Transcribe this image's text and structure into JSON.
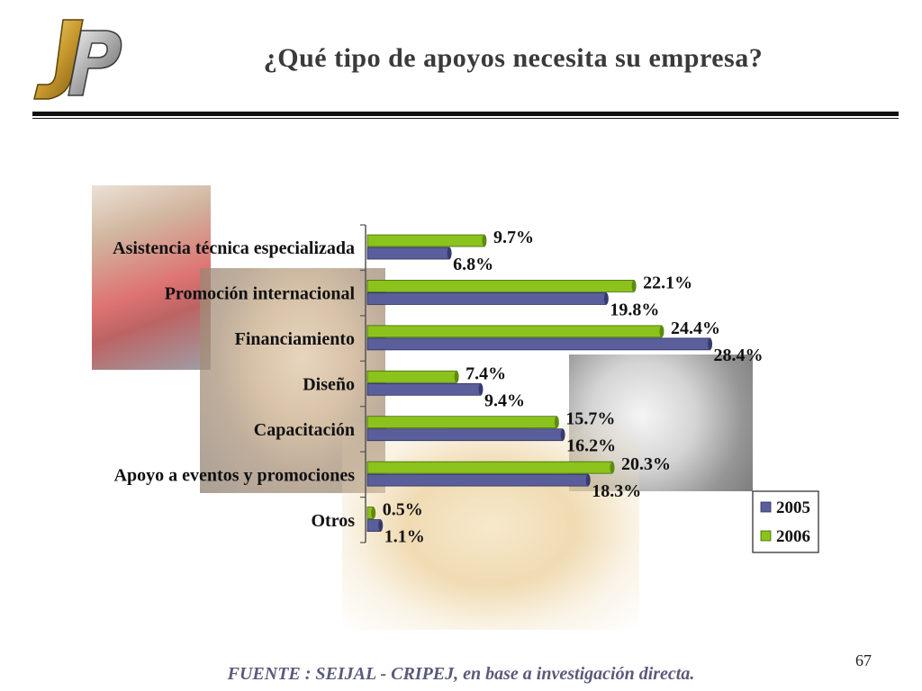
{
  "slide": {
    "title": "¿Qué tipo de apoyos necesita su empresa?",
    "page_number": "67",
    "source": "FUENTE :  SEIJAL - CRIPEJ,  en base a investigación directa.",
    "logo": "jp-logo"
  },
  "colors": {
    "series_2005": "#5a5e9a",
    "series_2006": "#8cc21c",
    "title": "#3a3a3a",
    "source": "#5a5a7a"
  },
  "chart_data": {
    "type": "bar",
    "orientation": "horizontal",
    "categories": [
      "Asistencia técnica especializada",
      "Promoción internacional",
      "Financiamiento",
      "Diseño",
      "Capacitación",
      "Apoyo a eventos y promociones",
      "Otros"
    ],
    "series": [
      {
        "name": "2005",
        "values": [
          6.8,
          19.8,
          28.4,
          9.4,
          16.2,
          18.3,
          1.1
        ],
        "labels": [
          "6.8%",
          "19.8%",
          "28.4%",
          "9.4%",
          "16.2%",
          "18.3%",
          "1.1%"
        ]
      },
      {
        "name": "2006",
        "values": [
          9.7,
          22.1,
          24.4,
          7.4,
          15.7,
          20.3,
          0.5
        ],
        "labels": [
          "9.7%",
          "22.1%",
          "24.4%",
          "7.4%",
          "15.7%",
          "20.3%",
          "0.5%"
        ]
      }
    ],
    "xlim": [
      0,
      30
    ],
    "grid": false,
    "legend_position": "bottom-right",
    "title": "",
    "xlabel": "",
    "ylabel": ""
  }
}
